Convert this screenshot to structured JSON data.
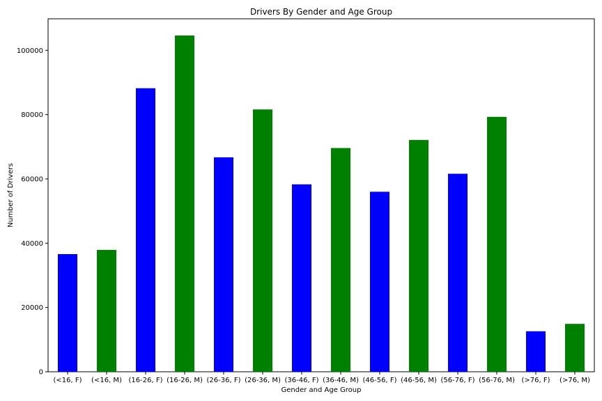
{
  "chart_data": {
    "type": "bar",
    "title": "Drivers By Gender and Age Group",
    "xlabel": "Gender and Age Group",
    "ylabel": "Number of Drivers",
    "categories": [
      "(<16, F)",
      "(<16, M)",
      "(16-26, F)",
      "(16-26, M)",
      "(26-36, F)",
      "(26-36, M)",
      "(36-46, F)",
      "(36-46, M)",
      "(46-56, F)",
      "(46-56, M)",
      "(56-76, F)",
      "(56-76, M)",
      "(>76, F)",
      "(>76, M)"
    ],
    "values": [
      36600,
      37900,
      88200,
      104600,
      66700,
      81600,
      58300,
      69600,
      56000,
      72100,
      61600,
      79300,
      12600,
      14900
    ],
    "bar_colors": [
      "#0000ff",
      "#008000",
      "#0000ff",
      "#008000",
      "#0000ff",
      "#008000",
      "#0000ff",
      "#008000",
      "#0000ff",
      "#008000",
      "#0000ff",
      "#008000",
      "#0000ff",
      "#008000"
    ],
    "y_ticks": [
      0,
      20000,
      40000,
      60000,
      80000,
      100000
    ],
    "y_tick_labels": [
      "0",
      "20000",
      "40000",
      "60000",
      "80000",
      "100000"
    ],
    "ylim": [
      0,
      109800
    ],
    "grid": false,
    "legend": "none"
  }
}
